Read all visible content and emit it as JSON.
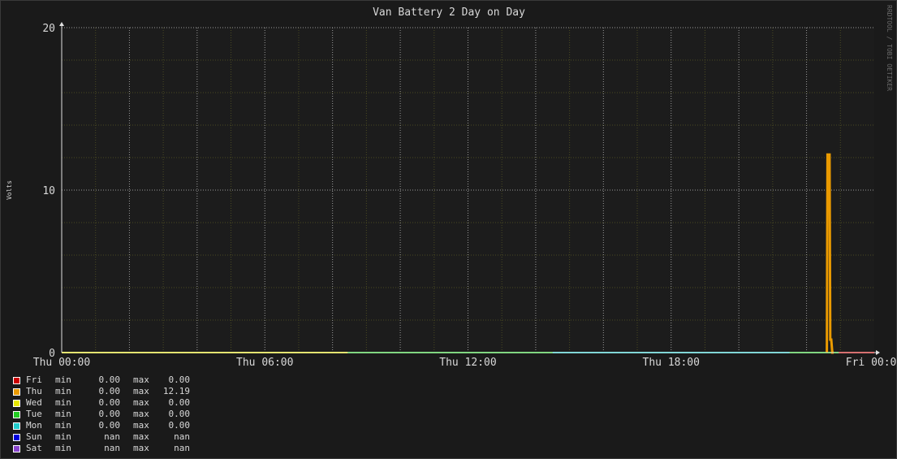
{
  "chart_data": {
    "type": "line",
    "title": "Van Battery 2 Day on Day",
    "ylabel": "Volts",
    "watermark": "RRDTOOL / TOBI OETIKER",
    "ylim": [
      0,
      20
    ],
    "y_ticks": [
      "0",
      "10",
      "20"
    ],
    "x_hours": [
      0,
      24
    ],
    "x_ticks": [
      {
        "hour": 0,
        "label": "Thu 00:00"
      },
      {
        "hour": 6,
        "label": "Thu 06:00"
      },
      {
        "hour": 12,
        "label": "Thu 12:00"
      },
      {
        "hour": 18,
        "label": "Thu 18:00"
      },
      {
        "hour": 24,
        "label": "Fri 00:00"
      }
    ],
    "grid": true,
    "background": "#1a1a1a",
    "plot_background": "#1c1c1c",
    "series": [
      {
        "name": "Fri",
        "color": "#cc0000",
        "min": "0.00",
        "max": "0.00",
        "points": [
          [
            22.95,
            0
          ],
          [
            24,
            0
          ]
        ]
      },
      {
        "name": "Thu",
        "color": "#ea9a00",
        "min": "0.00",
        "max": "12.19",
        "points": [
          [
            22.6,
            0
          ],
          [
            22.62,
            12.19
          ],
          [
            22.68,
            12.19
          ],
          [
            22.7,
            0.8
          ],
          [
            22.73,
            0.8
          ],
          [
            22.76,
            0
          ],
          [
            22.8,
            0
          ]
        ]
      },
      {
        "name": "Wed",
        "color": "#e8e800",
        "min": "0.00",
        "max": "0.00",
        "points": [
          [
            0,
            0
          ],
          [
            8.45,
            0
          ]
        ]
      },
      {
        "name": "Tue",
        "color": "#22cc22",
        "min": "0.00",
        "max": "0.00",
        "points": [
          [
            8.45,
            0
          ],
          [
            24,
            0
          ]
        ]
      },
      {
        "name": "Mon",
        "color": "#22cccc",
        "min": "0.00",
        "max": "0.00",
        "points": [
          [
            14.5,
            0
          ],
          [
            21.5,
            0
          ]
        ]
      },
      {
        "name": "Sun",
        "color": "#0000dd",
        "min": "nan",
        "max": "nan",
        "points": []
      },
      {
        "name": "Sat",
        "color": "#8844cc",
        "min": "nan",
        "max": "nan",
        "points": []
      }
    ]
  },
  "legend": {
    "min_label": "min",
    "max_label": "max"
  }
}
